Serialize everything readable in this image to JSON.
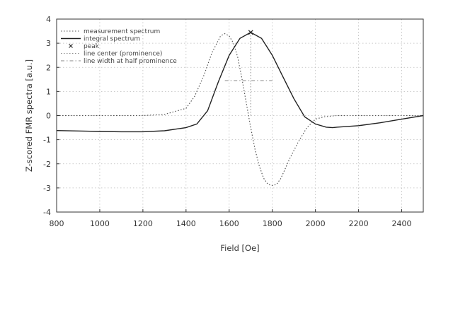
{
  "chart_data": {
    "type": "line",
    "xlabel": "Field [Oe]",
    "ylabel": "Z-scored FMR spectra [a.u.]",
    "xlim": [
      800,
      2500
    ],
    "ylim": [
      -4,
      4
    ],
    "xticks": [
      800,
      1000,
      1200,
      1400,
      1600,
      1800,
      2000,
      2200,
      2400
    ],
    "yticks": [
      -4,
      -3,
      -2,
      -1,
      0,
      1,
      2,
      3,
      4
    ],
    "grid": true,
    "legend_position": "top-left",
    "legend": [
      {
        "label": "measurement spectrum",
        "style": "dotted",
        "color": "#555555"
      },
      {
        "label": "integral spectrum",
        "style": "solid",
        "color": "#222222"
      },
      {
        "label": "peak",
        "style": "marker-x",
        "color": "#222222"
      },
      {
        "label": "line center (prominence)",
        "style": "dotted",
        "color": "#888888"
      },
      {
        "label": "line width at half prominence",
        "style": "dashdot",
        "color": "#888888"
      }
    ],
    "series": [
      {
        "name": "measurement spectrum",
        "style": "dotted",
        "color": "#555555",
        "x": [
          800,
          1000,
          1200,
          1300,
          1400,
          1440,
          1480,
          1520,
          1560,
          1580,
          1600,
          1620,
          1640,
          1660,
          1680,
          1700,
          1720,
          1740,
          1760,
          1780,
          1800,
          1820,
          1840,
          1860,
          1880,
          1920,
          1960,
          2000,
          2040,
          2100,
          2200,
          2300,
          2400,
          2500
        ],
        "y": [
          0.0,
          0.0,
          0.0,
          0.05,
          0.3,
          0.8,
          1.6,
          2.6,
          3.3,
          3.4,
          3.3,
          3.0,
          2.4,
          1.5,
          0.5,
          -0.5,
          -1.4,
          -2.1,
          -2.6,
          -2.85,
          -2.9,
          -2.85,
          -2.6,
          -2.2,
          -1.8,
          -1.1,
          -0.5,
          -0.15,
          -0.05,
          0.0,
          0.0,
          0.0,
          0.0,
          0.0
        ]
      },
      {
        "name": "integral spectrum",
        "style": "solid",
        "color": "#222222",
        "x": [
          800,
          900,
          1000,
          1100,
          1200,
          1300,
          1400,
          1450,
          1500,
          1550,
          1600,
          1650,
          1700,
          1750,
          1800,
          1850,
          1900,
          1950,
          2000,
          2050,
          2080,
          2100,
          2200,
          2300,
          2400,
          2500
        ],
        "y": [
          -0.62,
          -0.64,
          -0.66,
          -0.67,
          -0.67,
          -0.63,
          -0.5,
          -0.35,
          0.2,
          1.4,
          2.5,
          3.2,
          3.45,
          3.2,
          2.5,
          1.6,
          0.7,
          -0.05,
          -0.35,
          -0.48,
          -0.5,
          -0.48,
          -0.42,
          -0.3,
          -0.15,
          0.0
        ]
      }
    ],
    "peak": {
      "x": 1700,
      "y": 3.45
    },
    "line_center": {
      "x": 1700,
      "y_from": 0.0,
      "y_to": 3.45
    },
    "half_prominence_width": {
      "x_from": 1580,
      "x_to": 1800,
      "y": 1.45
    }
  }
}
